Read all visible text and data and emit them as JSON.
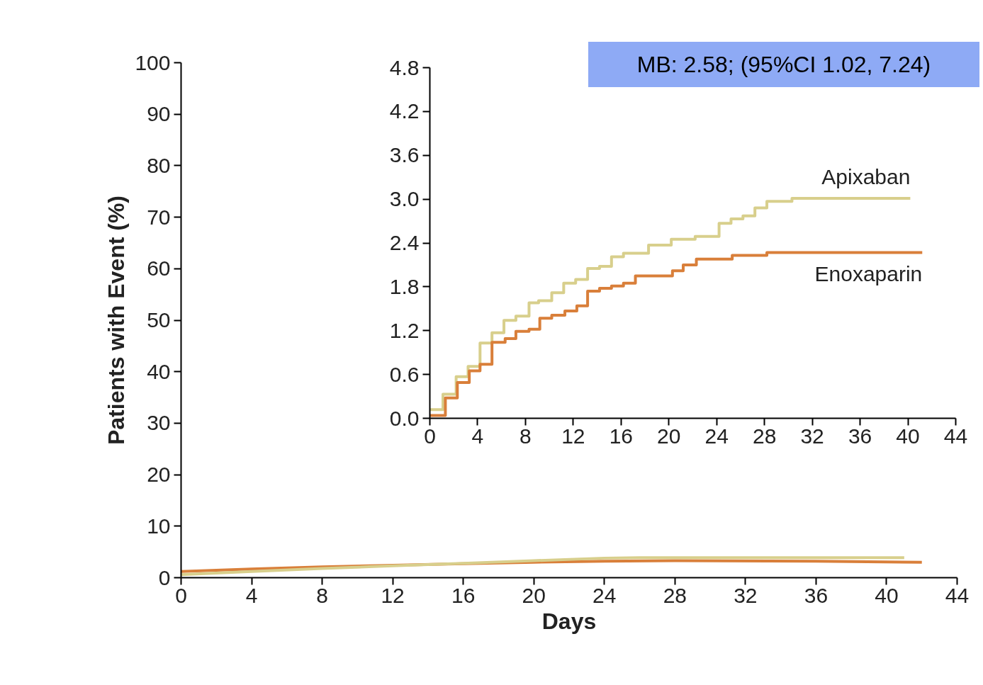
{
  "chart_data": [
    {
      "type": "line",
      "xlabel": "Days",
      "ylabel": "Patients with Event (%)",
      "xlim": [
        0,
        44
      ],
      "xticks": [
        0,
        4,
        8,
        12,
        16,
        20,
        24,
        28,
        32,
        36,
        40,
        44
      ],
      "ylim": [
        0,
        100
      ],
      "yticks": [
        0,
        10,
        20,
        30,
        40,
        50,
        60,
        70,
        80,
        90,
        100
      ],
      "grid": false,
      "annotations": [
        "MB: 2.58; (95%CI 1.02, 7.24)"
      ],
      "series": [
        {
          "color": "#d97f3a",
          "x": [
            0,
            4,
            8,
            12,
            16,
            20,
            24,
            28,
            36,
            42
          ],
          "values": [
            1.2,
            1.7,
            2.1,
            2.4,
            2.7,
            3.0,
            3.2,
            3.3,
            3.2,
            3.0
          ]
        },
        {
          "color": "#d8cf8c",
          "x": [
            0,
            4,
            8,
            12,
            16,
            20,
            24,
            26,
            30,
            41
          ],
          "values": [
            0.6,
            1.2,
            1.8,
            2.3,
            2.8,
            3.3,
            3.8,
            3.9,
            3.9,
            3.9
          ]
        }
      ]
    },
    {
      "type": "step",
      "xlim": [
        0,
        44
      ],
      "xticks": [
        0,
        4,
        8,
        12,
        16,
        20,
        24,
        28,
        32,
        36,
        40,
        44
      ],
      "ylim": [
        0,
        4.8
      ],
      "yticks": [
        {
          "value": 0,
          "label": "0.0"
        },
        0.6,
        1.2,
        1.8,
        2.4,
        {
          "value": 3,
          "label": "3.0"
        },
        3.6,
        4.2,
        4.8
      ],
      "grid": false,
      "series": [
        {
          "name": "Apixaban",
          "color": "#d8cf8c",
          "x": [
            0,
            1.1,
            2.2,
            3.2,
            4.2,
            5.2,
            6.2,
            7.2,
            8.3,
            9.1,
            10.2,
            11.2,
            12.2,
            13.2,
            14.2,
            15.2,
            16.2,
            18.3,
            20.2,
            22.2,
            24.2,
            25.2,
            26.2,
            27.2,
            28.2,
            30.3,
            40.2
          ],
          "values": [
            0.12,
            0.33,
            0.57,
            0.71,
            1.03,
            1.17,
            1.34,
            1.4,
            1.58,
            1.61,
            1.72,
            1.85,
            1.9,
            2.05,
            2.08,
            2.21,
            2.26,
            2.37,
            2.45,
            2.49,
            2.67,
            2.73,
            2.77,
            2.88,
            2.97,
            3.01,
            3.01
          ]
        },
        {
          "name": "Enoxaparin",
          "color": "#d97f3a",
          "x": [
            0,
            1.3,
            2.3,
            3.3,
            4.2,
            5.2,
            6.3,
            7.2,
            8.3,
            9.2,
            10.2,
            11.3,
            12.3,
            13.2,
            14.2,
            15.2,
            16.2,
            17.2,
            20.3,
            21.2,
            22.3,
            25.3,
            28.2,
            41.2
          ],
          "values": [
            0.04,
            0.28,
            0.49,
            0.65,
            0.74,
            1.04,
            1.09,
            1.19,
            1.22,
            1.37,
            1.41,
            1.47,
            1.54,
            1.74,
            1.78,
            1.81,
            1.85,
            1.95,
            2.02,
            2.1,
            2.18,
            2.23,
            2.27,
            2.27
          ]
        }
      ]
    }
  ]
}
